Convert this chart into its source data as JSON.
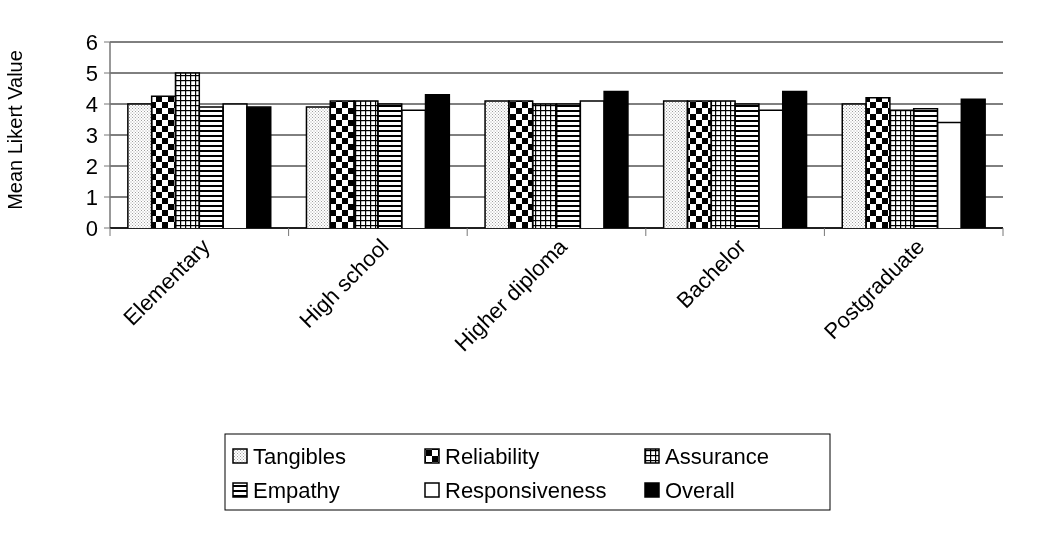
{
  "chart_data": {
    "type": "bar",
    "ylabel": "Mean Likert Value",
    "categories": [
      "Elementary",
      "High school",
      "Higher diploma",
      "Bachelor",
      "Postgraduate"
    ],
    "series": [
      {
        "name": "Tangibles",
        "color": "#a0a0a0",
        "values": [
          4.0,
          3.9,
          4.1,
          4.1,
          4.0
        ]
      },
      {
        "name": "Reliability",
        "color": "#000000",
        "values": [
          4.25,
          4.1,
          4.1,
          4.1,
          4.2
        ]
      },
      {
        "name": "Assurance",
        "color": "#000000",
        "values": [
          5.0,
          4.1,
          4.0,
          4.1,
          3.8
        ]
      },
      {
        "name": "Empathy",
        "color": "#000000",
        "values": [
          3.9,
          4.0,
          4.0,
          4.0,
          3.85
        ]
      },
      {
        "name": "Responsiveness",
        "color": "#ffffff",
        "values": [
          4.0,
          3.8,
          4.1,
          3.8,
          3.4
        ]
      },
      {
        "name": "Overall",
        "color": "#000000",
        "values": [
          3.9,
          4.3,
          4.4,
          4.4,
          4.15
        ]
      }
    ],
    "ylim": [
      0,
      6
    ],
    "yticks": [
      0,
      1,
      2,
      3,
      4,
      5,
      6
    ],
    "grid": "y",
    "legend": "bottom"
  }
}
